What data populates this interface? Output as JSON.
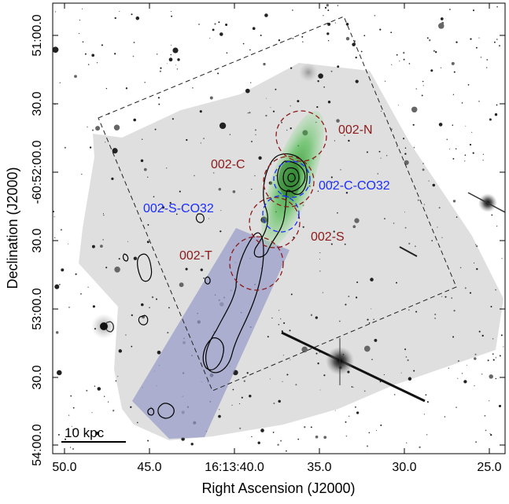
{
  "figure": {
    "xlabel": "Right Ascension (J2000)",
    "ylabel": "Declination (J2000)",
    "x_ticks": [
      "50.0",
      "45.0",
      "16:13:40.0",
      "35.0",
      "30.0",
      "25.0"
    ],
    "y_ticks": [
      "51:00.0",
      "30.0",
      "-60:52:00.0",
      "30.0",
      "53:00.0",
      "30.0",
      "54:00.0"
    ],
    "scalebar_label": "10 kpc",
    "region_labels": {
      "n": "002-N",
      "c": "002-C",
      "c_co32": "002-C-CO32",
      "s_co32": "002-S-CO32",
      "s": "002-S",
      "t": "002-T"
    },
    "colors": {
      "region_dark_red": "#8b1a1a",
      "co_blue": "#1a2cff",
      "halpha_green": "#5bbf5b",
      "tail_purple": "#9a9ec8",
      "coverage_gray": "#d9d9d9",
      "contour_black": "#000000"
    }
  }
}
